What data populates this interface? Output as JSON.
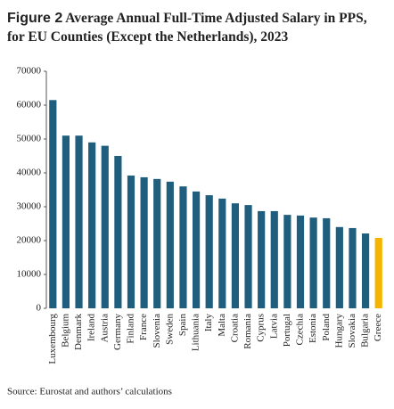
{
  "chart_data": {
    "type": "bar",
    "figure_label": "Figure 2",
    "title": "Average Annual Full-Time Adjusted Salary in PPS, for EU Counties (Except the Netherlands), 2023",
    "source": "Source: Eurostat and authors’ calculations",
    "categories": [
      "Luxembourg",
      "Belgium",
      "Denmark",
      "Ireland",
      "Austria",
      "Germany",
      "Finland",
      "France",
      "Slovenia",
      "Sweden",
      "Spain",
      "Lithuania",
      "Italy",
      "Malta",
      "Croatia",
      "Romania",
      "Cyprus",
      "Latvia",
      "Portugal",
      "Czechia",
      "Estonia",
      "Poland",
      "Hungary",
      "Slovakia",
      "Bulgaria",
      "Greece"
    ],
    "values": [
      61500,
      51000,
      51000,
      49000,
      48000,
      45000,
      39200,
      38700,
      38200,
      37400,
      36000,
      34500,
      33400,
      32400,
      31000,
      30500,
      28700,
      28700,
      27600,
      27400,
      26800,
      26600,
      24000,
      23700,
      22100,
      20800
    ],
    "colors": [
      "#1f5f7d",
      "#1f5f7d",
      "#1f5f7d",
      "#1f5f7d",
      "#1f5f7d",
      "#1f5f7d",
      "#1f5f7d",
      "#1f5f7d",
      "#1f5f7d",
      "#1f5f7d",
      "#1f5f7d",
      "#1f5f7d",
      "#1f5f7d",
      "#1f5f7d",
      "#1f5f7d",
      "#1f5f7d",
      "#1f5f7d",
      "#1f5f7d",
      "#1f5f7d",
      "#1f5f7d",
      "#1f5f7d",
      "#1f5f7d",
      "#1f5f7d",
      "#1f5f7d",
      "#1f5f7d",
      "#f5b400"
    ],
    "ylim": [
      0,
      70000
    ],
    "yticks": [
      0,
      10000,
      20000,
      30000,
      40000,
      50000,
      60000,
      70000
    ],
    "grid": false
  }
}
